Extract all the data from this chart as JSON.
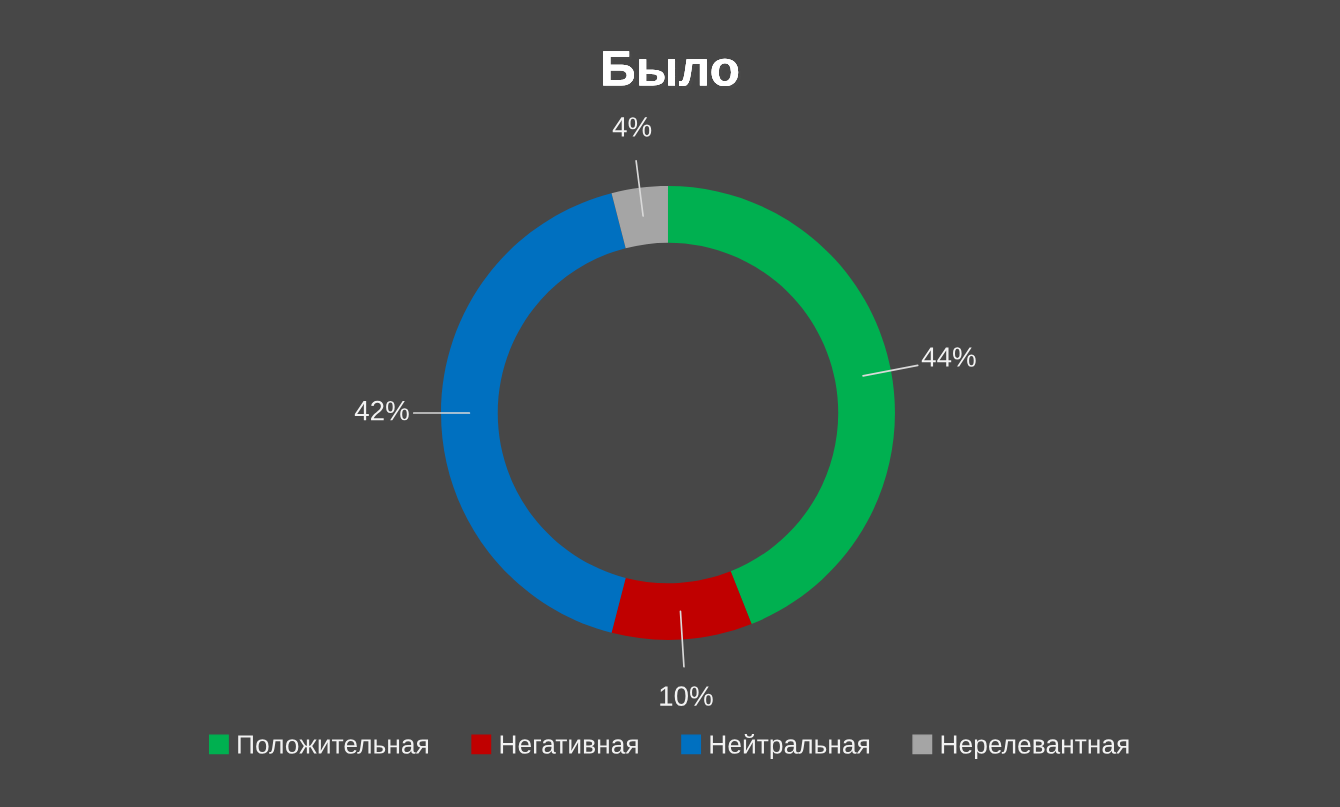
{
  "chart_data": {
    "type": "donut",
    "title": "Было",
    "categories": [
      "Положительная",
      "Негативная",
      "Нейтральная",
      "Нерелевантная"
    ],
    "values": [
      44,
      10,
      42,
      4
    ],
    "colors": [
      "#00b050",
      "#c00000",
      "#0070c0",
      "#a5a5a5"
    ],
    "value_labels": [
      "44%",
      "10%",
      "42%",
      "4%"
    ],
    "legend": "bottom"
  }
}
